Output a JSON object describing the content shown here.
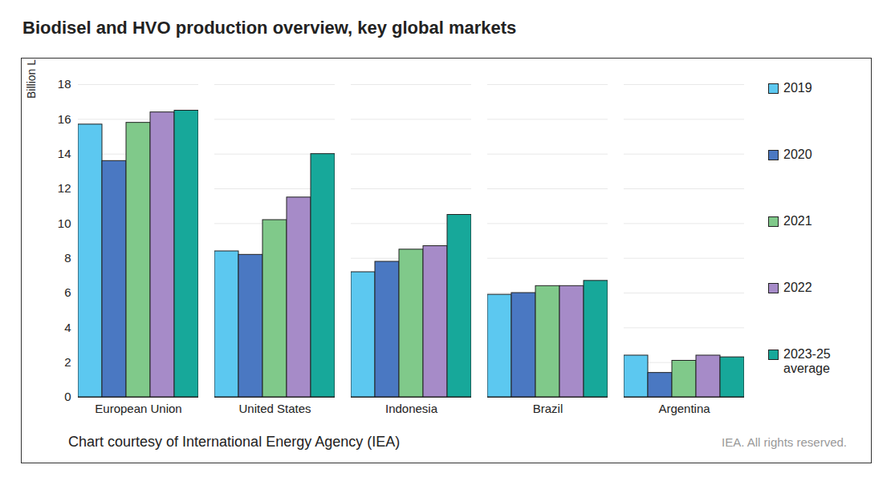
{
  "chart_data": {
    "type": "bar",
    "title": "Biodisel and HVO production overview, key global markets",
    "y_label": "Billion L",
    "caption": "Chart courtesy of International Energy Agency (IEA)",
    "credit": "IEA. All rights reserved.",
    "categories": [
      "European Union",
      "United States",
      "Indonesia",
      "Brazil",
      "Argentina"
    ],
    "series": [
      {
        "name": "2019",
        "color": "#5cc8f0",
        "values": [
          15.7,
          8.4,
          7.2,
          5.9,
          2.4
        ]
      },
      {
        "name": "2020",
        "color": "#4a78c2",
        "values": [
          13.6,
          8.2,
          7.8,
          6.0,
          1.4
        ]
      },
      {
        "name": "2021",
        "color": "#80c98a",
        "values": [
          15.8,
          10.2,
          8.5,
          6.4,
          2.1
        ]
      },
      {
        "name": "2022",
        "color": "#a68bc8",
        "values": [
          16.4,
          11.5,
          8.7,
          6.4,
          2.4
        ]
      },
      {
        "name": "2023-25 average",
        "color": "#17a89a",
        "values": [
          16.5,
          14.0,
          10.5,
          6.7,
          2.3
        ]
      }
    ],
    "ylim": [
      0,
      18
    ],
    "yticks": [
      0,
      2,
      4,
      6,
      8,
      10,
      12,
      14,
      16,
      18
    ],
    "grid": true,
    "legend": "right"
  }
}
